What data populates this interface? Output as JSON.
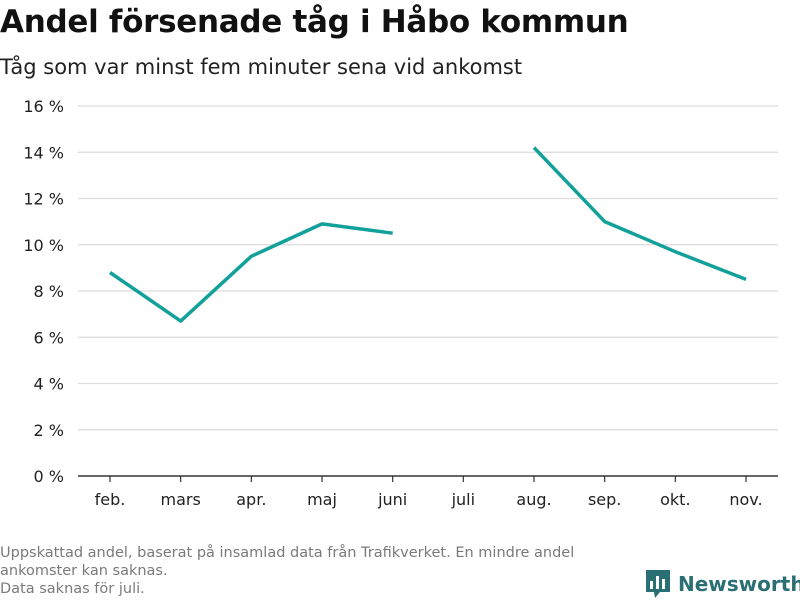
{
  "chart_data": {
    "type": "line",
    "title": "Andel försenade tåg i Håbo kommun",
    "subtitle": "Tåg som var minst fem minuter sena vid ankomst",
    "categories": [
      "feb.",
      "mars",
      "apr.",
      "maj",
      "juni",
      "juli",
      "aug.",
      "sep.",
      "okt.",
      "nov."
    ],
    "series": [
      {
        "values": [
          8.8,
          6.7,
          9.5,
          10.9,
          10.5,
          null,
          14.2,
          11.0,
          9.7,
          8.5
        ]
      }
    ],
    "yticks": [
      "0 %",
      "2 %",
      "4 %",
      "6 %",
      "8 %",
      "10 %",
      "12 %",
      "14 %",
      "16 %"
    ],
    "ylim": [
      0,
      16
    ],
    "grid": true,
    "line_color": "#12a19a"
  },
  "footnote": {
    "line1": "Uppskattad andel, baserat på insamlad data från Trafikverket. En mindre andel",
    "line2": "ankomster kan saknas.",
    "line3": "Data saknas för juli."
  },
  "brand": {
    "name": "Newsworthy",
    "icon": "bar-chart-logo-icon",
    "color": "#2a6f73"
  }
}
